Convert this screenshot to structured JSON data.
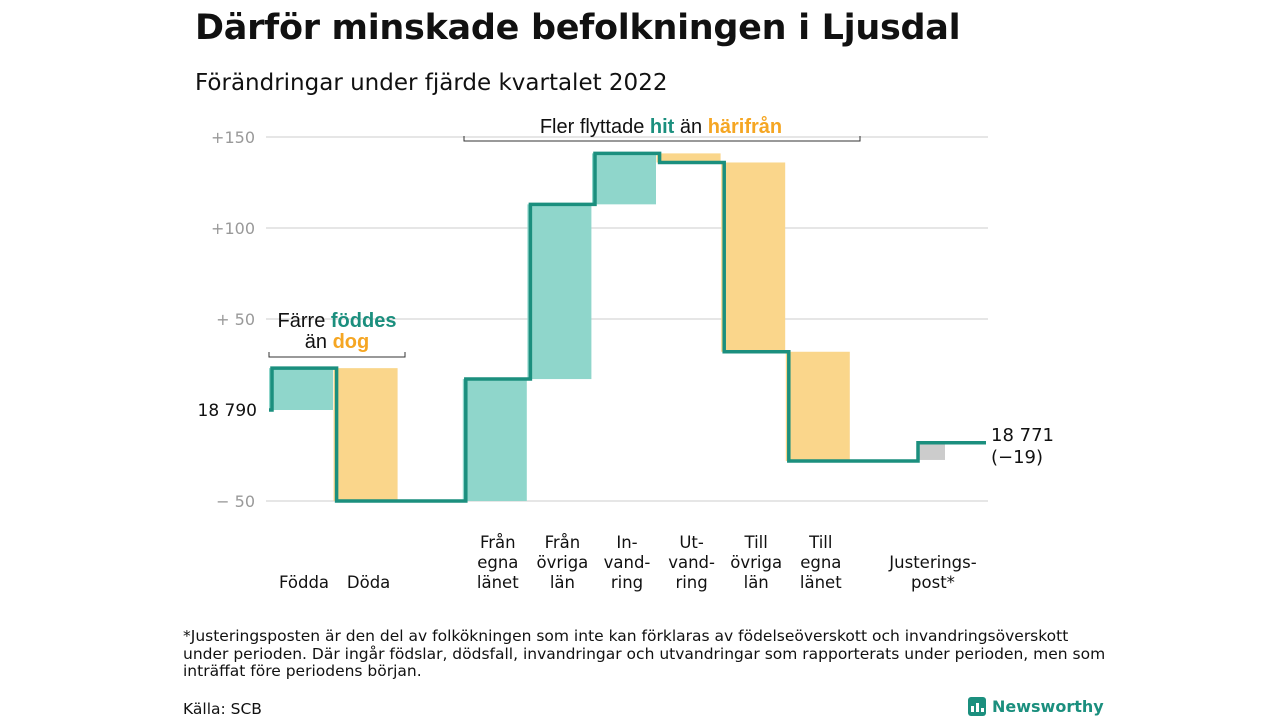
{
  "header": {
    "title": "Därför minskade befolkningen i Ljusdal",
    "subtitle": "Förändringar under fjärde kvartalet 2022"
  },
  "chart_data": {
    "type": "bar",
    "subtype": "waterfall",
    "base": 18790,
    "y_ticks": [
      {
        "value": 150,
        "label": "+150"
      },
      {
        "value": 100,
        "label": "+100"
      },
      {
        "value": 50,
        "label": "+ 50"
      },
      {
        "value": 0,
        "label": "18 790"
      },
      {
        "value": -50,
        "label": "− 50"
      }
    ],
    "ylim": [
      -55,
      155
    ],
    "steps": [
      {
        "category": [
          "Födda"
        ],
        "change": 23,
        "kind": "in"
      },
      {
        "category": [
          "Döda"
        ],
        "change": -73,
        "kind": "out"
      },
      {
        "category": [],
        "change": 0,
        "kind": "none"
      },
      {
        "category": [
          "Från",
          "egna",
          "länet"
        ],
        "change": 67,
        "kind": "in"
      },
      {
        "category": [
          "Från",
          "övriga",
          "län"
        ],
        "change": 96,
        "kind": "in"
      },
      {
        "category": [
          "In-",
          "vand-",
          "ring"
        ],
        "change": 28,
        "kind": "in"
      },
      {
        "category": [
          "Ut-",
          "vand-",
          "ring"
        ],
        "change": -5,
        "kind": "out"
      },
      {
        "category": [
          "Till",
          "övriga",
          "län"
        ],
        "change": -104,
        "kind": "out"
      },
      {
        "category": [
          "Till",
          "egna",
          "länet"
        ],
        "change": -60,
        "kind": "out"
      },
      {
        "category": [],
        "change": 0,
        "kind": "none"
      },
      {
        "category": [
          "Justerings-",
          "post*"
        ],
        "change": 10,
        "kind": "adjust"
      }
    ],
    "end_label": [
      "18 771",
      "(−19)"
    ],
    "annotations": [
      {
        "parts": [
          {
            "text": "Färre ",
            "kind": "text"
          },
          {
            "text": "föddes",
            "kind": "in"
          }
        ],
        "parts2": [
          {
            "text": "än ",
            "kind": "text"
          },
          {
            "text": "dog",
            "kind": "out"
          }
        ]
      },
      {
        "parts": [
          {
            "text": "Fler flyttade ",
            "kind": "text"
          },
          {
            "text": "hit",
            "kind": "in"
          },
          {
            "text": " än ",
            "kind": "text"
          },
          {
            "text": "härifrån",
            "kind": "out"
          }
        ]
      }
    ],
    "colors": {
      "line": "#1b8f7e",
      "in": "#8fd6cb",
      "out": "#fad68b",
      "adjust": "#cccccc",
      "in_text": "#1b8f7e",
      "out_text": "#f5a623",
      "tick_text": "#999999",
      "grid": "#cccccc"
    }
  },
  "footer": {
    "note": "*Justeringsposten är den del av folkökningen som inte kan förklaras av födelseöverskott och invandringsöverskott under perioden. Där ingår födslar, dödsfall, invandringar och utvandringar som rapporterats under perioden, men som inträffat före periodens början.",
    "source": "Källa: SCB",
    "brand": "Newsworthy"
  }
}
